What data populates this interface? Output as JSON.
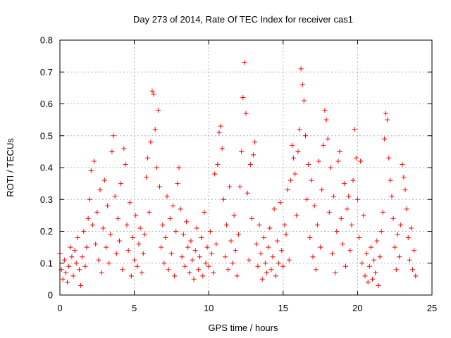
{
  "chart_data": {
    "type": "scatter",
    "title": "Day 273 of 2014, Rate Of TEC Index for receiver cas1",
    "xlabel": "GPS time / hours",
    "ylabel": "ROTI / TECUs",
    "xlim": [
      0,
      25
    ],
    "ylim": [
      0,
      0.8
    ],
    "xticks": [
      0,
      5,
      10,
      15,
      20,
      25
    ],
    "yticks": [
      0,
      0.1,
      0.2,
      0.3,
      0.4,
      0.5,
      0.6,
      0.7,
      0.8
    ],
    "xtick_labels": [
      "0",
      "5",
      "10",
      "15",
      "20",
      "25"
    ],
    "ytick_labels": [
      "0",
      "0.1",
      "0.2",
      "0.3",
      "0.4",
      "0.5",
      "0.6",
      "0.7",
      "0.8"
    ],
    "grid": true,
    "marker": "+",
    "color": "#ff0000",
    "series": [
      {
        "name": "ROTI",
        "points": [
          [
            0.0,
            0.13
          ],
          [
            0.1,
            0.08
          ],
          [
            0.2,
            0.05
          ],
          [
            0.3,
            0.11
          ],
          [
            0.4,
            0.07
          ],
          [
            0.5,
            0.04
          ],
          [
            0.6,
            0.09
          ],
          [
            0.7,
            0.15
          ],
          [
            0.8,
            0.12
          ],
          [
            0.9,
            0.06
          ],
          [
            1.0,
            0.14
          ],
          [
            1.1,
            0.1
          ],
          [
            1.2,
            0.18
          ],
          [
            1.3,
            0.08
          ],
          [
            1.4,
            0.03
          ],
          [
            1.5,
            0.12
          ],
          [
            1.6,
            0.2
          ],
          [
            1.7,
            0.09
          ],
          [
            1.8,
            0.15
          ],
          [
            1.9,
            0.24
          ],
          [
            2.0,
            0.3
          ],
          [
            2.1,
            0.39
          ],
          [
            2.2,
            0.22
          ],
          [
            2.3,
            0.42
          ],
          [
            2.4,
            0.16
          ],
          [
            2.5,
            0.26
          ],
          [
            2.6,
            0.11
          ],
          [
            2.7,
            0.33
          ],
          [
            2.8,
            0.07
          ],
          [
            2.9,
            0.21
          ],
          [
            3.0,
            0.36
          ],
          [
            3.1,
            0.15
          ],
          [
            3.2,
            0.28
          ],
          [
            3.3,
            0.1
          ],
          [
            3.4,
            0.19
          ],
          [
            3.5,
            0.45
          ],
          [
            3.6,
            0.5
          ],
          [
            3.7,
            0.31
          ],
          [
            3.8,
            0.13
          ],
          [
            3.9,
            0.24
          ],
          [
            4.0,
            0.17
          ],
          [
            4.1,
            0.35
          ],
          [
            4.2,
            0.08
          ],
          [
            4.3,
            0.46
          ],
          [
            4.4,
            0.41
          ],
          [
            4.5,
            0.22
          ],
          [
            4.6,
            0.14
          ],
          [
            4.7,
            0.29
          ],
          [
            4.8,
            0.06
          ],
          [
            4.9,
            0.18
          ],
          [
            5.0,
            0.11
          ],
          [
            5.1,
            0.25
          ],
          [
            5.2,
            0.09
          ],
          [
            5.3,
            0.16
          ],
          [
            5.4,
            0.21
          ],
          [
            5.5,
            0.07
          ],
          [
            5.6,
            0.13
          ],
          [
            5.7,
            0.19
          ],
          [
            5.8,
            0.37
          ],
          [
            5.9,
            0.43
          ],
          [
            6.0,
            0.26
          ],
          [
            6.1,
            0.48
          ],
          [
            6.2,
            0.64
          ],
          [
            6.3,
            0.63
          ],
          [
            6.4,
            0.52
          ],
          [
            6.5,
            0.4
          ],
          [
            6.6,
            0.58
          ],
          [
            6.7,
            0.34
          ],
          [
            6.8,
            0.15
          ],
          [
            6.9,
            0.22
          ],
          [
            7.0,
            0.1
          ],
          [
            7.1,
            0.18
          ],
          [
            7.2,
            0.31
          ],
          [
            7.3,
            0.08
          ],
          [
            7.4,
            0.24
          ],
          [
            7.5,
            0.13
          ],
          [
            7.6,
            0.28
          ],
          [
            7.7,
            0.06
          ],
          [
            7.8,
            0.2
          ],
          [
            7.9,
            0.35
          ],
          [
            8.0,
            0.4
          ],
          [
            8.1,
            0.27
          ],
          [
            8.2,
            0.12
          ],
          [
            8.3,
            0.19
          ],
          [
            8.4,
            0.09
          ],
          [
            8.5,
            0.23
          ],
          [
            8.6,
            0.15
          ],
          [
            8.7,
            0.07
          ],
          [
            8.8,
            0.17
          ],
          [
            8.9,
            0.11
          ],
          [
            9.0,
            0.05
          ],
          [
            9.1,
            0.14
          ],
          [
            9.2,
            0.21
          ],
          [
            9.3,
            0.08
          ],
          [
            9.4,
            0.12
          ],
          [
            9.5,
            0.18
          ],
          [
            9.6,
            0.06
          ],
          [
            9.7,
            0.26
          ],
          [
            9.8,
            0.1
          ],
          [
            9.9,
            0.15
          ],
          [
            10.0,
            0.09
          ],
          [
            10.1,
            0.2
          ],
          [
            10.2,
            0.13
          ],
          [
            10.3,
            0.07
          ],
          [
            10.4,
            0.38
          ],
          [
            10.5,
            0.16
          ],
          [
            10.6,
            0.41
          ],
          [
            10.7,
            0.51
          ],
          [
            10.8,
            0.53
          ],
          [
            10.9,
            0.46
          ],
          [
            11.0,
            0.3
          ],
          [
            11.1,
            0.12
          ],
          [
            11.2,
            0.22
          ],
          [
            11.3,
            0.08
          ],
          [
            11.4,
            0.34
          ],
          [
            11.5,
            0.17
          ],
          [
            11.6,
            0.1
          ],
          [
            11.7,
            0.25
          ],
          [
            11.8,
            0.14
          ],
          [
            11.9,
            0.06
          ],
          [
            12.0,
            0.19
          ],
          [
            12.1,
            0.34
          ],
          [
            12.2,
            0.45
          ],
          [
            12.3,
            0.62
          ],
          [
            12.4,
            0.73
          ],
          [
            12.5,
            0.57
          ],
          [
            12.6,
            0.32
          ],
          [
            12.7,
            0.11
          ],
          [
            12.8,
            0.41
          ],
          [
            12.9,
            0.24
          ],
          [
            13.0,
            0.44
          ],
          [
            13.1,
            0.48
          ],
          [
            13.2,
            0.16
          ],
          [
            13.3,
            0.09
          ],
          [
            13.4,
            0.22
          ],
          [
            13.5,
            0.13
          ],
          [
            13.6,
            0.05
          ],
          [
            13.7,
            0.18
          ],
          [
            13.8,
            0.1
          ],
          [
            13.9,
            0.07
          ],
          [
            14.0,
            0.15
          ],
          [
            14.1,
            0.21
          ],
          [
            14.2,
            0.08
          ],
          [
            14.3,
            0.12
          ],
          [
            14.4,
            0.27
          ],
          [
            14.5,
            0.06
          ],
          [
            14.6,
            0.17
          ],
          [
            14.7,
            0.1
          ],
          [
            14.8,
            0.29
          ],
          [
            14.9,
            0.14
          ],
          [
            15.0,
            0.09
          ],
          [
            15.1,
            0.22
          ],
          [
            15.2,
            0.19
          ],
          [
            15.3,
            0.33
          ],
          [
            15.4,
            0.11
          ],
          [
            15.5,
            0.36
          ],
          [
            15.6,
            0.47
          ],
          [
            15.7,
            0.43
          ],
          [
            15.8,
            0.38
          ],
          [
            15.9,
            0.25
          ],
          [
            16.0,
            0.45
          ],
          [
            16.1,
            0.52
          ],
          [
            16.2,
            0.71
          ],
          [
            16.3,
            0.66
          ],
          [
            16.4,
            0.61
          ],
          [
            16.5,
            0.5
          ],
          [
            16.6,
            0.3
          ],
          [
            16.7,
            0.41
          ],
          [
            16.8,
            0.18
          ],
          [
            16.9,
            0.36
          ],
          [
            17.0,
            0.12
          ],
          [
            17.1,
            0.28
          ],
          [
            17.2,
            0.08
          ],
          [
            17.3,
            0.22
          ],
          [
            17.4,
            0.42
          ],
          [
            17.5,
            0.15
          ],
          [
            17.6,
            0.33
          ],
          [
            17.7,
            0.47
          ],
          [
            17.8,
            0.58
          ],
          [
            17.9,
            0.55
          ],
          [
            18.0,
            0.49
          ],
          [
            18.1,
            0.26
          ],
          [
            18.2,
            0.4
          ],
          [
            18.3,
            0.13
          ],
          [
            18.4,
            0.31
          ],
          [
            18.5,
            0.07
          ],
          [
            18.6,
            0.2
          ],
          [
            18.7,
            0.42
          ],
          [
            18.8,
            0.45
          ],
          [
            18.9,
            0.24
          ],
          [
            19.0,
            0.16
          ],
          [
            19.1,
            0.35
          ],
          [
            19.2,
            0.09
          ],
          [
            19.3,
            0.27
          ],
          [
            19.4,
            0.31
          ],
          [
            19.5,
            0.14
          ],
          [
            19.6,
            0.22
          ],
          [
            19.7,
            0.36
          ],
          [
            19.8,
            0.52
          ],
          [
            19.9,
            0.43
          ],
          [
            20.0,
            0.3
          ],
          [
            20.1,
            0.18
          ],
          [
            20.2,
            0.42
          ],
          [
            20.3,
            0.1
          ],
          [
            20.4,
            0.25
          ],
          [
            20.5,
            0.06
          ],
          [
            20.6,
            0.13
          ],
          [
            20.7,
            0.04
          ],
          [
            20.8,
            0.09
          ],
          [
            20.9,
            0.15
          ],
          [
            21.0,
            0.05
          ],
          [
            21.1,
            0.11
          ],
          [
            21.2,
            0.07
          ],
          [
            21.3,
            0.17
          ],
          [
            21.4,
            0.03
          ],
          [
            21.5,
            0.12
          ],
          [
            21.6,
            0.2
          ],
          [
            21.7,
            0.26
          ],
          [
            21.8,
            0.49
          ],
          [
            21.9,
            0.57
          ],
          [
            22.0,
            0.55
          ],
          [
            22.1,
            0.43
          ],
          [
            22.2,
            0.36
          ],
          [
            22.3,
            0.31
          ],
          [
            22.4,
            0.24
          ],
          [
            22.5,
            0.15
          ],
          [
            22.6,
            0.08
          ],
          [
            22.7,
            0.19
          ],
          [
            22.8,
            0.12
          ],
          [
            22.9,
            0.22
          ],
          [
            23.0,
            0.41
          ],
          [
            23.1,
            0.37
          ],
          [
            23.2,
            0.33
          ],
          [
            23.3,
            0.27
          ],
          [
            23.4,
            0.18
          ],
          [
            23.5,
            0.11
          ],
          [
            23.6,
            0.21
          ],
          [
            23.7,
            0.08
          ],
          [
            23.8,
            0.14
          ],
          [
            23.9,
            0.06
          ]
        ]
      }
    ]
  }
}
